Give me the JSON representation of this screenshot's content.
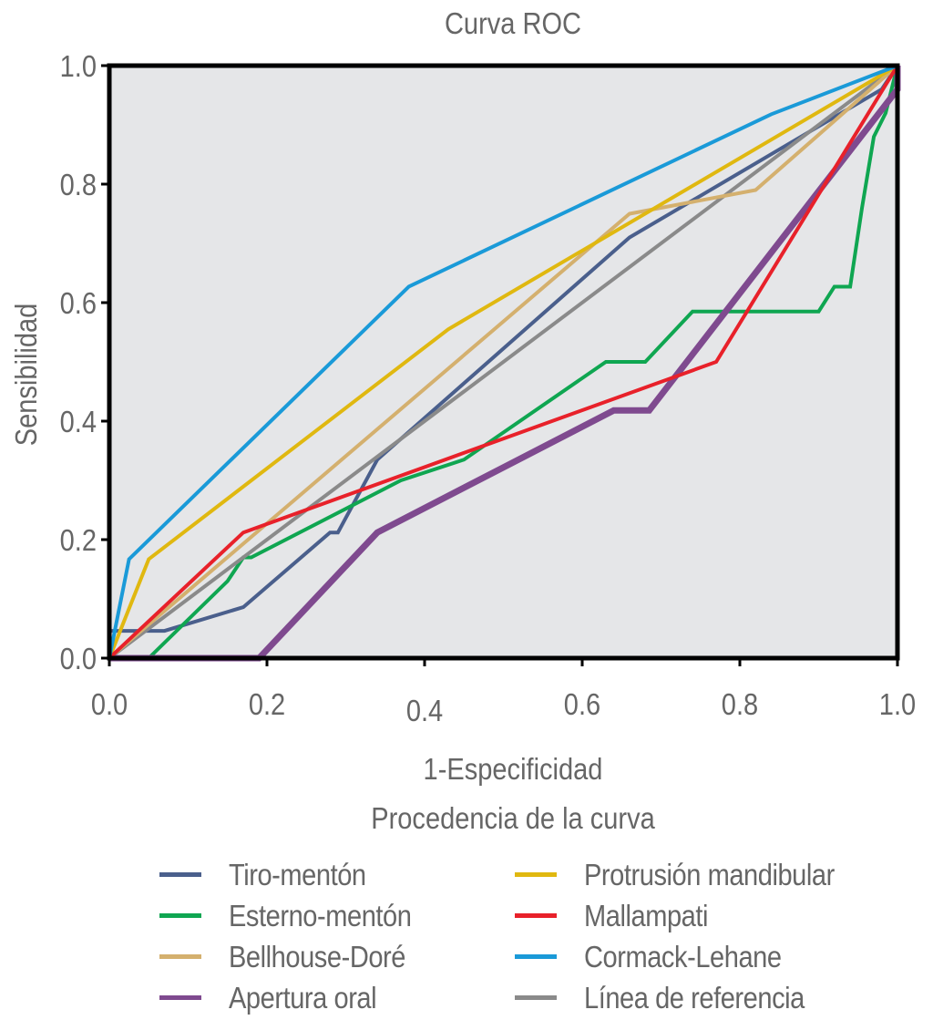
{
  "chart_data": {
    "type": "line",
    "title": "Curva ROC",
    "xlabel": "1-Especificidad",
    "ylabel": "Sensibilidad",
    "legend_title": "Procedencia de la curva",
    "legend_position": "bottom",
    "xlim": [
      0,
      1
    ],
    "ylim": [
      0,
      1
    ],
    "xticks": [
      "0.0",
      "0.2",
      "0.4",
      "0.6",
      "0.8",
      "1.0"
    ],
    "yticks": [
      "0.0",
      "0.2",
      "0.4",
      "0.6",
      "0.8",
      "1.0"
    ],
    "grid": false,
    "plot_background": "#e5e6e8",
    "series": [
      {
        "name": "Tiro-mentón",
        "color": "#4a5f8c",
        "weight": "normal",
        "x": [
          0,
          0,
          0.07,
          0.17,
          0.28,
          0.29,
          0.34,
          0.66,
          0.98,
          1
        ],
        "y": [
          0,
          0.046,
          0.046,
          0.086,
          0.212,
          0.212,
          0.335,
          0.71,
          0.96,
          1
        ]
      },
      {
        "name": "Esterno-mentón",
        "color": "#0fa651",
        "weight": "normal",
        "x": [
          0.05,
          0.15,
          0.17,
          0.18,
          0.37,
          0.45,
          0.63,
          0.68,
          0.74,
          0.9,
          0.92,
          0.94,
          0.955,
          0.97,
          0.985,
          1
        ],
        "y": [
          0,
          0.13,
          0.17,
          0.17,
          0.3,
          0.335,
          0.5,
          0.5,
          0.585,
          0.585,
          0.627,
          0.627,
          0.76,
          0.88,
          0.92,
          1
        ]
      },
      {
        "name": "Bellhouse-Doré",
        "color": "#d4b06e",
        "weight": "normal",
        "x": [
          0,
          0.66,
          0.82,
          1
        ],
        "y": [
          0,
          0.75,
          0.79,
          1
        ]
      },
      {
        "name": "Apertura oral",
        "color": "#7f4a8f",
        "weight": "bold",
        "x": [
          0,
          0.19,
          0.34,
          0.64,
          0.685,
          1,
          1
        ],
        "y": [
          0,
          0,
          0.212,
          0.418,
          0.418,
          0.96,
          1
        ]
      },
      {
        "name": "Protrusión mandibular",
        "color": "#e0b810",
        "weight": "normal",
        "x": [
          0,
          0.05,
          0.43,
          1
        ],
        "y": [
          0,
          0.167,
          0.555,
          1
        ]
      },
      {
        "name": "Mallampati",
        "color": "#e8212a",
        "weight": "normal",
        "x": [
          0,
          0.17,
          0.77,
          1
        ],
        "y": [
          0,
          0.212,
          0.5,
          1
        ]
      },
      {
        "name": "Cormack-Lehane",
        "color": "#1a9ad8",
        "weight": "normal",
        "x": [
          0,
          0.025,
          0.38,
          0.84,
          1
        ],
        "y": [
          0,
          0.167,
          0.627,
          0.918,
          1
        ]
      },
      {
        "name": "Línea de referencia",
        "color": "#8a8a8a",
        "weight": "normal",
        "x": [
          0,
          1
        ],
        "y": [
          0,
          1
        ]
      }
    ],
    "legend_order": [
      0,
      4,
      1,
      5,
      2,
      6,
      3,
      7
    ]
  }
}
